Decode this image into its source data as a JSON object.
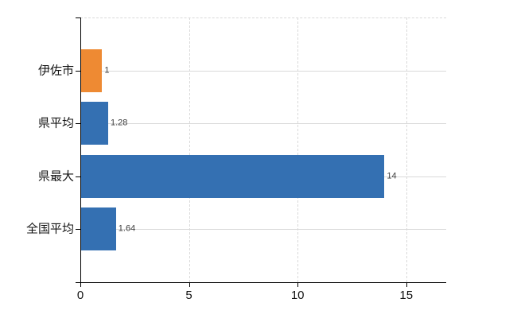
{
  "chart_data": {
    "type": "bar",
    "orientation": "horizontal",
    "title": "",
    "categories": [
      "伊佐市",
      "県平均",
      "県最大",
      "全国平均"
    ],
    "values": [
      1,
      1.28,
      14,
      1.64
    ],
    "value_labels": [
      "1",
      "1.28",
      "14",
      "1.64"
    ],
    "bar_colors": [
      "#ee8a33",
      "#3470b2",
      "#3470b2",
      "#3470b2"
    ],
    "xlim": [
      0,
      16.84
    ],
    "x_ticks": [
      0,
      5,
      10,
      15
    ],
    "x_tick_labels": [
      "0",
      "5",
      "10",
      "15"
    ],
    "grid": {
      "vertical_dashed_ticks": [
        5,
        10,
        15
      ],
      "horizontal_category_lines": true,
      "top_border_dashed": true
    },
    "colors": {
      "axis": "#000000",
      "gridline": "#d9d9d9",
      "value_label": "#3d3d3d",
      "category_label": "#141414",
      "tick_label": "#141414",
      "background": "#ffffff"
    }
  }
}
